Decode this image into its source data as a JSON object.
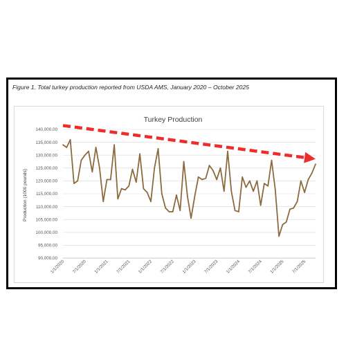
{
  "figure": {
    "caption": "Figure 1. Total turkey production reported from USDA AMS, January 2020 – October 2025"
  },
  "chart_data": {
    "type": "line",
    "title": "Turkey Production",
    "xlabel": "",
    "ylabel": "Production (1000 pounds)",
    "ylim": [
      90000,
      140000
    ],
    "y_ticks": [
      "140,000.00",
      "135,000.00",
      "130,000.00",
      "125,000.00",
      "120,000.00",
      "115,000.00",
      "110,000.00",
      "105,000.00",
      "100,000.00",
      "95,000.00",
      "90,000.00"
    ],
    "x_tick_labels": [
      "1/1/2020",
      "7/1/2020",
      "1/1/2021",
      "7/1/2021",
      "1/1/2022",
      "7/1/2022",
      "1/1/2023",
      "7/1/2023",
      "1/1/2024",
      "7/1/2024",
      "1/1/2025",
      "7/1/2025"
    ],
    "grid": true,
    "legend": "none",
    "line_color": "#8B6A3E",
    "trend_arrow_color": "#EE2C2C",
    "trend_arrow": {
      "start": [
        "1/1/2020",
        141500
      ],
      "end": [
        "10/1/2025",
        128500
      ]
    },
    "series": [
      {
        "x": [
          "1/2020",
          "2/2020",
          "3/2020",
          "4/2020",
          "5/2020",
          "6/2020",
          "7/2020",
          "8/2020",
          "9/2020",
          "10/2020",
          "11/2020",
          "12/2020",
          "1/2021",
          "2/2021",
          "3/2021",
          "4/2021",
          "5/2021",
          "6/2021",
          "7/2021",
          "8/2021",
          "9/2021",
          "10/2021",
          "11/2021",
          "12/2021",
          "1/2022",
          "2/2022",
          "3/2022",
          "4/2022",
          "5/2022",
          "6/2022",
          "7/2022",
          "8/2022",
          "9/2022",
          "10/2022",
          "11/2022",
          "12/2022",
          "1/2023",
          "2/2023",
          "3/2023",
          "4/2023",
          "5/2023",
          "6/2023",
          "7/2023",
          "8/2023",
          "9/2023",
          "10/2023",
          "11/2023",
          "12/2023",
          "1/2024",
          "2/2024",
          "3/2024",
          "4/2024",
          "5/2024",
          "6/2024",
          "7/2024",
          "8/2024",
          "9/2024",
          "10/2024",
          "11/2024",
          "12/2024",
          "1/2025",
          "2/2025",
          "3/2025",
          "4/2025",
          "5/2025",
          "6/2025",
          "7/2025",
          "8/2025",
          "9/2025",
          "10/2025"
        ],
        "values": [
          134000,
          133000,
          136000,
          119000,
          120000,
          128000,
          130000,
          131500,
          123500,
          133000,
          125000,
          112000,
          120500,
          120500,
          134000,
          113000,
          117000,
          116500,
          118000,
          124500,
          119500,
          130500,
          117000,
          115500,
          112000,
          125000,
          132500,
          115000,
          109500,
          108000,
          108000,
          114500,
          108500,
          127500,
          114000,
          105500,
          114000,
          121500,
          120500,
          121000,
          126000,
          124000,
          120500,
          125000,
          116000,
          131500,
          116000,
          108500,
          108000,
          121500,
          117500,
          120000,
          116000,
          120000,
          110500,
          119000,
          118000,
          128000,
          116500,
          98500,
          103000,
          104000,
          109000,
          109500,
          112000,
          120000,
          115500,
          120500,
          123000,
          126500
        ]
      }
    ]
  }
}
